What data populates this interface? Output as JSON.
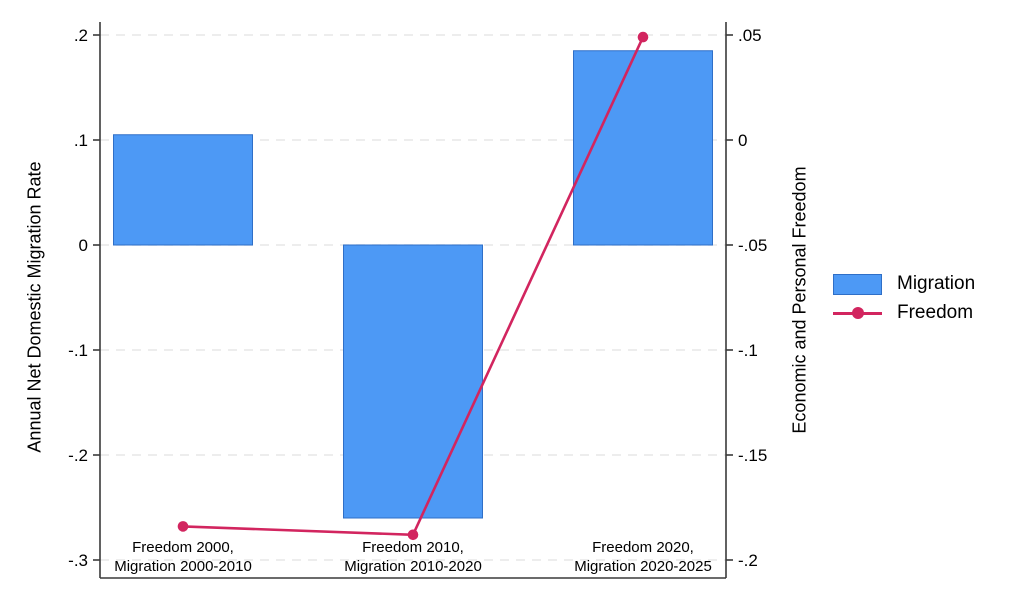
{
  "chart_data": {
    "type": "combo-bar-line-dual-axis",
    "title": "",
    "categories": [
      [
        "Freedom 2000,",
        "Migration 2000-2010"
      ],
      [
        "Freedom 2010,",
        "Migration 2010-2020"
      ],
      [
        "Freedom 2020,",
        "Migration 2020-2025"
      ]
    ],
    "series": [
      {
        "name": "Migration",
        "type": "bar",
        "axis": "left",
        "color": "#4D99F5",
        "border_color": "#2F6FC7",
        "values": [
          0.105,
          -0.26,
          0.185
        ]
      },
      {
        "name": "Freedom",
        "type": "line",
        "axis": "right",
        "color": "#D2255F",
        "marker": "circle",
        "values": [
          -0.184,
          -0.188,
          0.049
        ]
      }
    ],
    "left_axis": {
      "label": "Annual Net Domestic Migration Rate",
      "tick_labels": [
        ".2",
        ".1",
        "0",
        "-.1",
        "-.2",
        "-.3"
      ],
      "tick_values": [
        0.2,
        0.1,
        0,
        -0.1,
        -0.2,
        -0.3
      ],
      "range": [
        -0.3,
        0.2
      ]
    },
    "right_axis": {
      "label": "Economic and Personal Freedom",
      "tick_labels": [
        ".05",
        "0",
        "-.05",
        "-.1",
        "-.15",
        "-.2"
      ],
      "tick_values": [
        0.05,
        0,
        -0.05,
        -0.1,
        -0.15,
        -0.2
      ],
      "range": [
        -0.2,
        0.05
      ]
    },
    "grid": {
      "horizontal": true,
      "style": "dashed",
      "color": "#E7E7E7"
    },
    "axis_color": "#3A3A3A",
    "text_color": "#000000",
    "legend_position": "right-middle",
    "background": "#FFFFFF"
  }
}
